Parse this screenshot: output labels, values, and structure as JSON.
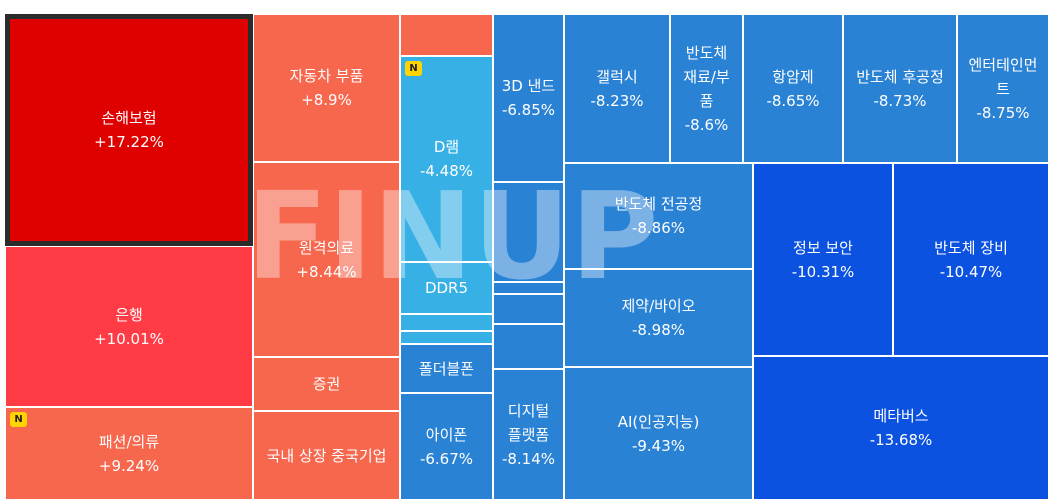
{
  "watermark": "FINUP",
  "badge_label": "N",
  "colors": {
    "strong_up": "#df0000",
    "up": "#ff3b46",
    "mild_up": "#f7674e",
    "light_blue": "#37b0e5",
    "down": "#2a82d5",
    "deep_down": "#0b52e0"
  },
  "chart_data": {
    "type": "treemap",
    "unit": "%",
    "items": [
      {
        "name": "손해보험",
        "change": "+17.22%",
        "value": 17.22
      },
      {
        "name": "은행",
        "change": "+10.01%",
        "value": 10.01
      },
      {
        "name": "패션/의류",
        "change": "+9.24%",
        "value": 9.24,
        "badge": "N"
      },
      {
        "name": "자동차 부품",
        "change": "+8.9%",
        "value": 8.9
      },
      {
        "name": "원격의료",
        "change": "+8.44%",
        "value": 8.44
      },
      {
        "name": "증권",
        "change": "",
        "value": null
      },
      {
        "name": "국내 상장 중국기업",
        "change": "",
        "value": null
      },
      {
        "name": "",
        "change": "",
        "value": null
      },
      {
        "name": "D램",
        "change": "-4.48%",
        "value": -4.48,
        "badge": "N"
      },
      {
        "name": "DDR5",
        "change": "",
        "value": null
      },
      {
        "name": "",
        "change": "",
        "value": null
      },
      {
        "name": "",
        "change": "",
        "value": null
      },
      {
        "name": "폴더블폰",
        "change": "",
        "value": null
      },
      {
        "name": "아이폰",
        "change": "-6.67%",
        "value": -6.67
      },
      {
        "name": "3D 낸드",
        "change": "-6.85%",
        "value": -6.85
      },
      {
        "name": "",
        "change": "",
        "value": null
      },
      {
        "name": "",
        "change": "",
        "value": null
      },
      {
        "name": "",
        "change": "",
        "value": null
      },
      {
        "name": "",
        "change": "",
        "value": null
      },
      {
        "name": "디지털 플랫폼",
        "change": "-8.14%",
        "value": -8.14
      },
      {
        "name": "갤럭시",
        "change": "-8.23%",
        "value": -8.23
      },
      {
        "name": "반도체 재료/부품",
        "change": "-8.6%",
        "value": -8.6
      },
      {
        "name": "항암제",
        "change": "-8.65%",
        "value": -8.65
      },
      {
        "name": "반도체 후공정",
        "change": "-8.73%",
        "value": -8.73
      },
      {
        "name": "엔터테인먼트",
        "change": "-8.75%",
        "value": -8.75
      },
      {
        "name": "반도체 전공정",
        "change": "-8.86%",
        "value": -8.86
      },
      {
        "name": "제약/바이오",
        "change": "-8.98%",
        "value": -8.98
      },
      {
        "name": "AI(인공지능)",
        "change": "-9.43%",
        "value": -9.43
      },
      {
        "name": "정보 보안",
        "change": "-10.31%",
        "value": -10.31
      },
      {
        "name": "반도체 장비",
        "change": "-10.47%",
        "value": -10.47
      },
      {
        "name": "메타버스",
        "change": "-13.68%",
        "value": -13.68
      }
    ]
  }
}
